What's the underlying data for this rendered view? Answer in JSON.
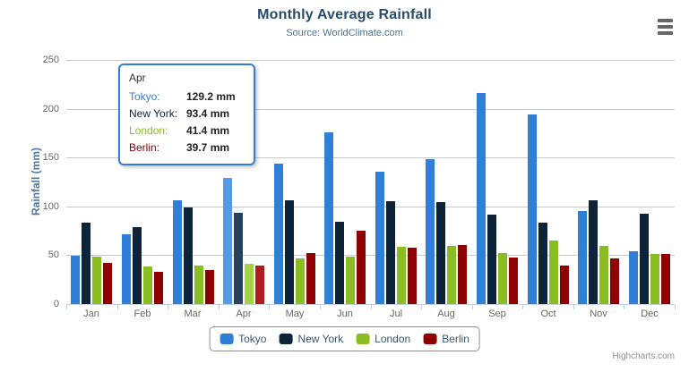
{
  "header": {
    "title": "Monthly Average Rainfall",
    "subtitle": "Source: WorldClimate.com"
  },
  "y_axis": {
    "title": "Rainfall (mm)"
  },
  "chart_data": {
    "type": "bar",
    "title": "Monthly Average Rainfall",
    "subtitle": "Source: WorldClimate.com",
    "ylabel": "Rainfall (mm)",
    "ylim": [
      0,
      250
    ],
    "y_ticks": [
      0,
      50,
      100,
      150,
      200,
      250
    ],
    "grid": true,
    "legend_position": "bottom",
    "categories": [
      "Jan",
      "Feb",
      "Mar",
      "Apr",
      "May",
      "Jun",
      "Jul",
      "Aug",
      "Sep",
      "Oct",
      "Nov",
      "Dec"
    ],
    "hovered_category": "Apr",
    "series": [
      {
        "name": "Tokyo",
        "color": "#2f7ed8",
        "hover_color": "#549ae8",
        "values": [
          49.9,
          71.5,
          106.4,
          129.2,
          144.0,
          176.0,
          135.6,
          148.5,
          216.4,
          194.1,
          95.6,
          54.4
        ]
      },
      {
        "name": "New York",
        "color": "#0d233a",
        "hover_color": "#28425e",
        "values": [
          83.6,
          78.8,
          98.5,
          93.4,
          106.0,
          84.5,
          105.0,
          104.3,
          91.2,
          83.5,
          106.6,
          92.3
        ]
      },
      {
        "name": "London",
        "color": "#8bbc21",
        "hover_color": "#a3d13f",
        "values": [
          48.9,
          38.8,
          39.3,
          41.4,
          47.0,
          48.3,
          59.0,
          59.6,
          52.4,
          65.2,
          59.3,
          51.2
        ]
      },
      {
        "name": "Berlin",
        "color": "#910000",
        "hover_color": "#b01c1c",
        "values": [
          42.4,
          33.2,
          34.5,
          39.7,
          52.6,
          75.5,
          57.4,
          60.4,
          47.6,
          39.1,
          46.8,
          51.1
        ]
      }
    ]
  },
  "tooltip": {
    "header": "Apr",
    "border_color": "#2f7ed8",
    "rows": [
      {
        "label": "Tokyo:",
        "value": "129.2 mm",
        "color": "#2f7ed8"
      },
      {
        "label": "New York:",
        "value": "93.4 mm",
        "color": "#0d233a"
      },
      {
        "label": "London:",
        "value": "41.4 mm",
        "color": "#8bbc21"
      },
      {
        "label": "Berlin:",
        "value": "39.7 mm",
        "color": "#910000"
      }
    ]
  },
  "legend": {
    "items": [
      {
        "label": "Tokyo",
        "color": "#2f7ed8"
      },
      {
        "label": "New York",
        "color": "#0d233a"
      },
      {
        "label": "London",
        "color": "#8bbc21"
      },
      {
        "label": "Berlin",
        "color": "#910000"
      }
    ]
  },
  "credits": {
    "label": "Highcharts.com"
  }
}
